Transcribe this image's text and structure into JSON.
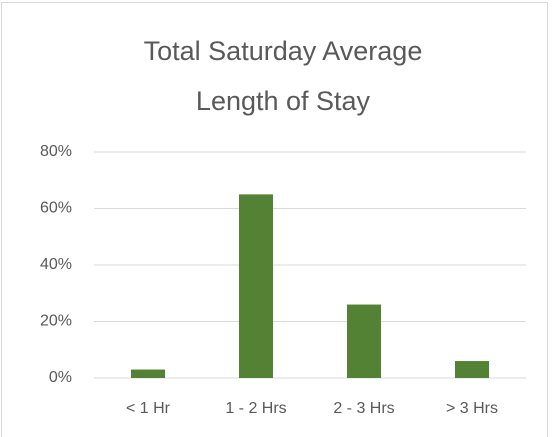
{
  "chart_data": {
    "type": "bar",
    "title": "Total Saturday Average Length of Stay",
    "categories": [
      "< 1 Hr",
      "1 - 2 Hrs",
      "2 - 3 Hrs",
      "> 3 Hrs"
    ],
    "values": [
      3,
      65,
      26,
      6
    ],
    "color": "#548235",
    "ylim": [
      0,
      80
    ],
    "yticks": [
      {
        "value": 0,
        "label": "0%"
      },
      {
        "value": 20,
        "label": "20%"
      },
      {
        "value": 40,
        "label": "40%"
      },
      {
        "value": 60,
        "label": "60%"
      },
      {
        "value": 80,
        "label": "80%"
      }
    ],
    "grid": true
  }
}
